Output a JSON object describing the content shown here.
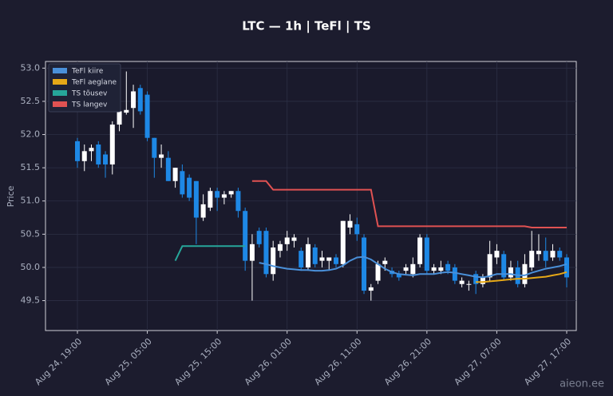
{
  "chart_data": {
    "type": "candlestick",
    "title": "LTC — 1h  |  TeFl  |  TS",
    "y_label": "Price",
    "watermark": "aieon.ee",
    "categories": [
      "Aug 24, 19:00",
      null,
      null,
      null,
      null,
      null,
      null,
      null,
      null,
      null,
      "Aug 25, 05:00",
      null,
      null,
      null,
      null,
      null,
      null,
      null,
      null,
      null,
      "Aug 25, 15:00",
      null,
      null,
      null,
      null,
      null,
      null,
      null,
      null,
      null,
      "Aug 26, 01:00",
      null,
      null,
      null,
      null,
      null,
      null,
      null,
      null,
      null,
      "Aug 26, 11:00",
      null,
      null,
      null,
      null,
      null,
      null,
      null,
      null,
      null,
      "Aug 26, 21:00",
      null,
      null,
      null,
      null,
      null,
      null,
      null,
      null,
      null,
      "Aug 27, 07:00",
      null,
      null,
      null,
      null,
      null,
      null,
      null,
      null,
      null,
      "Aug 27, 17:00"
    ],
    "open": [
      51.9,
      51.6,
      51.75,
      51.85,
      51.7,
      51.55,
      52.15,
      52.33,
      52.4,
      52.7,
      52.6,
      51.95,
      51.65,
      51.65,
      51.3,
      51.45,
      51.35,
      51.3,
      50.75,
      50.9,
      51.15,
      51.05,
      51.1,
      51.15,
      50.85,
      50.1,
      50.55,
      50.55,
      49.9,
      50.25,
      50.35,
      50.4,
      50.25,
      50.0,
      50.3,
      50.1,
      50.1,
      50.15,
      50.05,
      50.6,
      50.65,
      50.45,
      49.65,
      49.8,
      50.05,
      49.95,
      49.9,
      49.95,
      49.9,
      50.05,
      50.45,
      49.95,
      49.95,
      50.05,
      50.0,
      49.75,
      49.75,
      49.9,
      49.75,
      49.85,
      50.15,
      50.2,
      49.85,
      50.0,
      49.75,
      50.0,
      50.2,
      50.25,
      50.15,
      50.25,
      50.15
    ],
    "high": [
      51.95,
      51.85,
      51.85,
      51.9,
      51.75,
      52.2,
      52.5,
      52.95,
      52.75,
      52.75,
      52.65,
      51.95,
      51.85,
      51.75,
      51.5,
      51.55,
      51.4,
      51.3,
      51.1,
      51.2,
      51.2,
      51.15,
      51.15,
      51.2,
      50.9,
      50.5,
      50.6,
      50.6,
      50.4,
      50.4,
      50.55,
      50.5,
      50.3,
      50.45,
      50.35,
      50.25,
      50.15,
      50.2,
      50.7,
      50.8,
      50.75,
      50.5,
      49.75,
      50.1,
      50.15,
      50.0,
      49.95,
      50.05,
      50.15,
      50.5,
      50.5,
      50.05,
      50.1,
      50.1,
      50.05,
      49.85,
      49.8,
      49.95,
      49.9,
      50.4,
      50.35,
      50.25,
      50.1,
      50.1,
      50.2,
      50.55,
      50.5,
      50.45,
      50.35,
      50.3,
      50.2
    ],
    "low": [
      51.5,
      51.45,
      51.6,
      51.5,
      51.35,
      51.4,
      52.05,
      52.3,
      52.1,
      52.3,
      51.9,
      51.35,
      51.5,
      51.3,
      51.2,
      51.05,
      51.0,
      50.35,
      50.7,
      50.85,
      50.85,
      50.95,
      51.05,
      50.75,
      49.95,
      49.5,
      50.3,
      49.85,
      49.8,
      50.15,
      50.25,
      50.3,
      49.95,
      49.95,
      50.0,
      50.0,
      49.95,
      50.0,
      50.0,
      50.5,
      50.4,
      49.6,
      49.5,
      49.75,
      49.95,
      49.85,
      49.8,
      49.9,
      49.85,
      50.0,
      49.9,
      49.9,
      49.9,
      49.9,
      49.75,
      49.7,
      49.65,
      49.6,
      49.7,
      49.8,
      50.05,
      49.8,
      49.8,
      49.7,
      49.7,
      49.95,
      50.1,
      50.0,
      50.1,
      50.1,
      49.7
    ],
    "close": [
      51.6,
      51.75,
      51.8,
      51.55,
      51.55,
      52.15,
      52.35,
      52.37,
      52.65,
      52.35,
      51.95,
      51.65,
      51.7,
      51.3,
      51.5,
      51.1,
      51.05,
      50.75,
      50.95,
      51.15,
      51.05,
      51.1,
      51.15,
      50.85,
      50.1,
      50.35,
      50.35,
      49.9,
      50.3,
      50.35,
      50.45,
      50.45,
      50.0,
      50.35,
      50.05,
      50.15,
      50.15,
      50.05,
      50.7,
      50.7,
      50.5,
      49.65,
      49.7,
      50.05,
      50.1,
      49.9,
      49.85,
      50.0,
      50.05,
      50.45,
      49.95,
      50.0,
      50.0,
      49.95,
      49.8,
      49.8,
      49.75,
      49.75,
      49.85,
      50.2,
      50.25,
      49.85,
      50.0,
      49.75,
      50.05,
      50.25,
      50.25,
      50.1,
      50.25,
      50.15,
      49.85
    ],
    "up_color": "#ffffff",
    "down_color": "#1e88e5",
    "series": [
      {
        "name": "TeFl kiire",
        "color": "#4a90d9",
        "values": [
          null,
          null,
          null,
          null,
          null,
          null,
          null,
          null,
          null,
          null,
          null,
          null,
          null,
          null,
          null,
          null,
          null,
          null,
          null,
          null,
          null,
          null,
          null,
          null,
          null,
          null,
          50.07,
          50.05,
          50.02,
          50.0,
          49.98,
          49.97,
          49.96,
          49.96,
          49.95,
          49.95,
          49.96,
          49.98,
          50.03,
          50.1,
          50.15,
          50.16,
          50.12,
          50.05,
          49.98,
          49.93,
          49.9,
          49.89,
          49.88,
          49.9,
          49.9,
          49.9,
          49.92,
          49.93,
          49.92,
          49.9,
          49.88,
          49.86,
          49.85,
          49.87,
          49.9,
          49.9,
          49.9,
          49.88,
          49.88,
          49.92,
          49.95,
          49.98,
          50.0,
          50.02,
          50.05
        ]
      },
      {
        "name": "TeFl aeglane",
        "color": "#e6a817",
        "values": [
          null,
          null,
          null,
          null,
          null,
          null,
          null,
          null,
          null,
          null,
          null,
          null,
          null,
          null,
          null,
          null,
          null,
          null,
          null,
          null,
          null,
          null,
          null,
          null,
          null,
          null,
          null,
          null,
          null,
          null,
          null,
          null,
          null,
          null,
          null,
          null,
          null,
          null,
          null,
          null,
          null,
          null,
          null,
          null,
          null,
          null,
          null,
          null,
          null,
          null,
          null,
          null,
          null,
          null,
          null,
          null,
          null,
          49.78,
          49.78,
          49.79,
          49.8,
          49.81,
          49.82,
          49.83,
          49.83,
          49.84,
          49.85,
          49.86,
          49.88,
          49.9,
          49.93
        ]
      },
      {
        "name": "TS tõusev",
        "color": "#26a69a",
        "values": [
          null,
          null,
          null,
          null,
          null,
          null,
          null,
          null,
          null,
          null,
          null,
          null,
          null,
          null,
          50.1,
          50.32,
          50.32,
          50.32,
          50.32,
          50.32,
          50.32,
          50.32,
          50.32,
          50.32,
          50.32,
          null,
          null,
          null,
          null,
          null,
          null,
          null,
          null,
          null,
          null,
          null,
          null,
          null,
          null,
          null,
          null,
          null,
          null,
          null,
          null,
          null,
          null,
          null,
          null,
          null,
          null,
          null,
          null,
          null,
          null,
          null,
          null,
          null,
          null,
          null,
          null,
          null,
          null,
          null,
          null,
          null,
          null,
          null,
          null,
          null,
          null
        ]
      },
      {
        "name": "TS langev",
        "color": "#e05252",
        "values": [
          null,
          null,
          null,
          null,
          null,
          null,
          null,
          null,
          null,
          null,
          null,
          null,
          null,
          null,
          null,
          null,
          null,
          null,
          null,
          null,
          null,
          null,
          null,
          null,
          null,
          51.3,
          51.3,
          51.3,
          51.17,
          51.17,
          51.17,
          51.17,
          51.17,
          51.17,
          51.17,
          51.17,
          51.17,
          51.17,
          51.17,
          51.17,
          51.17,
          51.17,
          51.17,
          50.62,
          50.62,
          50.62,
          50.62,
          50.62,
          50.62,
          50.62,
          50.62,
          50.62,
          50.62,
          50.62,
          50.62,
          50.62,
          50.62,
          50.62,
          50.62,
          50.62,
          50.62,
          50.62,
          50.62,
          50.62,
          50.62,
          50.6,
          50.6,
          50.6,
          50.6,
          50.6,
          50.6
        ]
      }
    ],
    "ylim": [
      49.05,
      53.1
    ],
    "yticks": [
      {
        "value": 49.5,
        "label": "49.5"
      },
      {
        "value": 50,
        "label": "50.0"
      },
      {
        "value": 50.5,
        "label": "50.5"
      },
      {
        "value": 51,
        "label": "51.0"
      },
      {
        "value": 51.5,
        "label": "51.5"
      },
      {
        "value": 52,
        "label": "52.0"
      },
      {
        "value": 52.5,
        "label": "52.5"
      },
      {
        "value": 53,
        "label": "53.0"
      }
    ],
    "grid": true,
    "legend": "upper left"
  }
}
